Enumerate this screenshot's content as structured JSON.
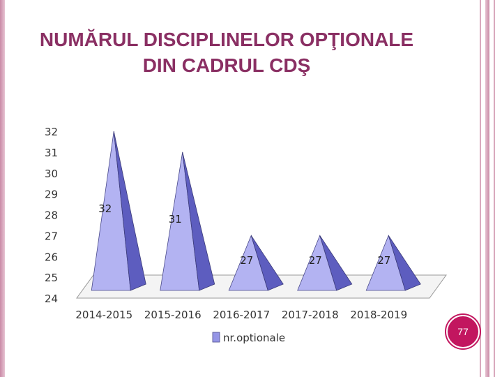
{
  "slide": {
    "title": "NUMĂRUL DISCIPLINELOR OPŢIONALE\nDIN CADRUL CDŞ",
    "page_number": "77"
  },
  "colors": {
    "title": "#8a2f63",
    "pyramid_light": "#b3b3f2",
    "pyramid_mid": "#9595e6",
    "pyramid_dark": "#5d5dbf",
    "badge": "#c2165f",
    "frame": "#d9a9bd"
  },
  "chart_data": {
    "type": "bar",
    "shape": "pyramid-3d",
    "categories": [
      "2014-2015",
      "2015-2016",
      "2016-2017",
      "2017-2018",
      "2018-2019"
    ],
    "series": [
      {
        "name": "nr.optionale",
        "values": [
          32,
          31,
          27,
          27,
          27
        ]
      }
    ],
    "ylim": [
      24,
      32
    ],
    "yticks": [
      24,
      25,
      26,
      27,
      28,
      29,
      30,
      31,
      32
    ],
    "data_labels": [
      "32",
      "31",
      "27",
      "27",
      "27"
    ],
    "legend_position": "bottom",
    "grid": false
  }
}
